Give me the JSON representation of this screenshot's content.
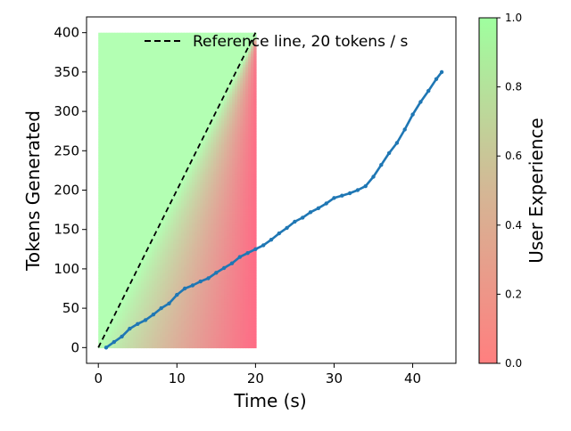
{
  "chart_data": {
    "type": "scatter",
    "xlabel": "Time (s)",
    "ylabel": "Tokens Generated",
    "xlim": [
      -1.5,
      45.5
    ],
    "ylim": [
      -20,
      420
    ],
    "x_ticks": [
      0,
      10,
      20,
      30,
      40
    ],
    "y_ticks": [
      0,
      50,
      100,
      150,
      200,
      250,
      300,
      350,
      400
    ],
    "grid": false,
    "legend": {
      "placement": "top-right",
      "entries": [
        {
          "label": "Reference line, 20 tokens / s",
          "style": "dashed",
          "color": "#000000"
        }
      ]
    },
    "reference_line": {
      "name": "Reference line, 20 tokens / s",
      "x": [
        0,
        20
      ],
      "y": [
        0,
        400
      ],
      "color": "#000000"
    },
    "background_region": {
      "x": [
        0,
        20
      ],
      "y": [
        0,
        400
      ],
      "good_color": "#b3ffb3",
      "bad_color": "#ff6b85"
    },
    "series": [
      {
        "color": "#1f77b4",
        "x": [
          1,
          2,
          3,
          4,
          5,
          6,
          7,
          8,
          9,
          10,
          11,
          12,
          13,
          14,
          15,
          16,
          17,
          18,
          19,
          20,
          21,
          22,
          23,
          24,
          25,
          26,
          27,
          28,
          29,
          30,
          31,
          32,
          33,
          34,
          35,
          36,
          37,
          38,
          39,
          40,
          41,
          42,
          43,
          43.7
        ],
        "y": [
          0,
          7,
          14,
          24,
          30,
          35,
          42,
          50,
          56,
          67,
          75,
          79,
          84,
          88,
          95,
          101,
          107,
          115,
          120,
          125,
          130,
          137,
          145,
          152,
          160,
          165,
          172,
          177,
          183,
          190,
          193,
          196,
          200,
          205,
          217,
          232,
          247,
          260,
          277,
          296,
          312,
          326,
          341,
          350
        ]
      }
    ],
    "colorbar": {
      "label": "User Experience",
      "range": [
        0,
        1
      ],
      "ticks": [
        "0.0",
        "0.2",
        "0.4",
        "0.6",
        "0.8",
        "1.0"
      ],
      "colors": [
        "#ff7f7f",
        "#d4b795",
        "#9fff9f"
      ]
    }
  }
}
